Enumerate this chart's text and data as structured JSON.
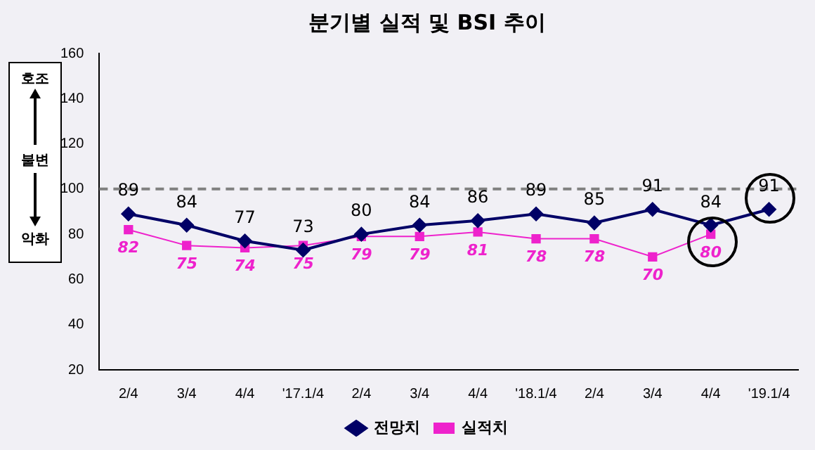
{
  "chart_data": {
    "type": "line",
    "title": "분기별 실적 및 BSI 추이",
    "categories": [
      "2/4",
      "3/4",
      "4/4",
      "'17.1/4",
      "2/4",
      "3/4",
      "4/4",
      "'18.1/4",
      "2/4",
      "3/4",
      "4/4",
      "'19.1/4"
    ],
    "series": [
      {
        "name": "전망치",
        "color": "#000066",
        "marker": "diamond",
        "values": [
          89,
          84,
          77,
          73,
          80,
          84,
          86,
          89,
          85,
          91,
          84,
          91
        ]
      },
      {
        "name": "실적치",
        "color": "#ee22cc",
        "marker": "square",
        "values": [
          82,
          75,
          74,
          75,
          79,
          79,
          81,
          78,
          78,
          70,
          80,
          null
        ]
      }
    ],
    "ylim": [
      20,
      160
    ],
    "yticks": [
      20,
      40,
      60,
      80,
      100,
      120,
      140,
      160
    ],
    "ref_lines": [
      {
        "axis": "y",
        "value": 100,
        "color": "#808080",
        "line_style": "dashed"
      }
    ],
    "annotations": [
      "호조",
      "불변",
      "악화"
    ],
    "data_labels": true,
    "legend": "bottom",
    "grid": false
  }
}
